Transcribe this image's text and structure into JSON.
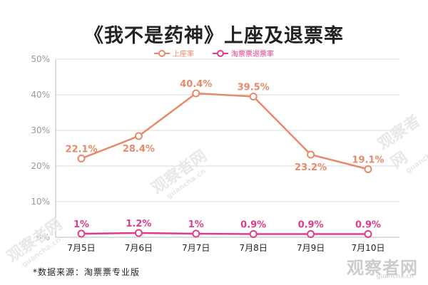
{
  "title": "《我不是药神》上座及退票率",
  "footnote": "*数据来源：淘票票专业版",
  "watermark": {
    "main": "观察者网",
    "url": "guancha.cn"
  },
  "colors": {
    "occupancy": "#e8896a",
    "refund": "#e03c8a",
    "grid": "#d9d9d9",
    "axis_text": "#9a9a9a",
    "title": "#222222"
  },
  "chart_data": {
    "type": "line",
    "title": "《我不是药神》上座及退票率",
    "categories": [
      "7月5日",
      "7月6日",
      "7月7日",
      "7月8日",
      "7月9日",
      "7月10日"
    ],
    "y_ticks": [
      "0%",
      "10%",
      "20%",
      "30%",
      "40%",
      "50%"
    ],
    "ylim": [
      0,
      50
    ],
    "grid": true,
    "legend_position": "top-center",
    "series": [
      {
        "name": "上座率",
        "values": [
          22.1,
          28.4,
          40.4,
          39.5,
          23.2,
          19.1
        ],
        "labels": [
          "22.1%",
          "28.4%",
          "40.4%",
          "39.5%",
          "23.2%",
          "19.1%"
        ],
        "label_side": [
          "above",
          "below",
          "above",
          "above",
          "below",
          "above"
        ]
      },
      {
        "name": "淘票票退票率",
        "values": [
          1,
          1.2,
          1,
          0.9,
          0.9,
          0.9
        ],
        "labels": [
          "1%",
          "1.2%",
          "1%",
          "0.9%",
          "0.9%",
          "0.9%"
        ],
        "label_side": [
          "above",
          "above",
          "above",
          "above",
          "above",
          "above"
        ]
      }
    ]
  }
}
